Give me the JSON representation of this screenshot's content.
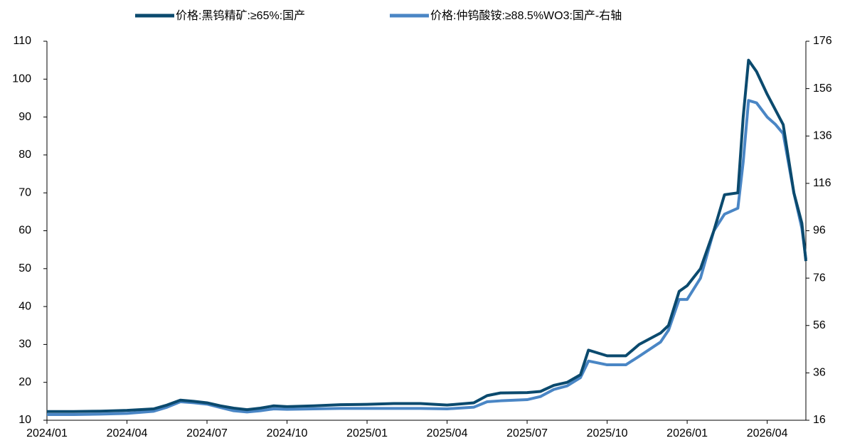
{
  "chart_data": {
    "type": "line",
    "x": [
      0,
      1,
      2,
      3,
      4,
      4.5,
      5,
      5.5,
      6,
      6.5,
      7,
      7.5,
      8,
      8.5,
      9,
      10,
      11,
      12,
      13,
      14,
      15,
      16,
      16.5,
      17,
      18,
      18.5,
      19,
      19.5,
      20,
      20.3,
      21,
      21.7,
      22.2,
      23,
      23.3,
      23.7,
      24,
      24.5,
      25,
      25.4,
      25.9,
      26.1,
      26.3,
      26.6,
      27,
      27.3,
      27.6,
      28,
      28.3,
      28.45
    ],
    "series": [
      {
        "name": "价格:黑钨精矿:≥65%:国产",
        "color": "#0b4a6e",
        "values": [
          12.3,
          12.3,
          12.4,
          12.6,
          13,
          14,
          15.3,
          15,
          14.6,
          13.8,
          13.2,
          12.8,
          13.2,
          13.8,
          13.6,
          13.8,
          14.1,
          14.2,
          14.4,
          14.4,
          14,
          14.6,
          16.5,
          17.2,
          17.3,
          17.6,
          19.2,
          20,
          22,
          28.5,
          27,
          27,
          30,
          33,
          35,
          44,
          45.5,
          50,
          60,
          69.5,
          70,
          90,
          105,
          102,
          96,
          92,
          88,
          70,
          62,
          52
        ]
      },
      {
        "name": "价格:仲钨酸铵:≥88.5%WO3:国产-右轴",
        "color": "#4a86c5",
        "axis": "y2",
        "values": [
          18.4,
          18.4,
          18.6,
          18.9,
          19.8,
          21.5,
          23.8,
          23.4,
          22.8,
          21.4,
          20,
          19.5,
          20,
          20.8,
          20.6,
          20.8,
          21,
          21,
          21,
          21,
          20.8,
          21.5,
          23.8,
          24.2,
          24.7,
          26,
          29,
          30.5,
          34,
          41,
          39.4,
          39.4,
          43,
          49,
          54,
          67,
          67,
          76,
          96,
          103,
          105.5,
          125,
          151,
          150,
          144,
          141,
          137,
          112,
          97,
          84
        ]
      }
    ],
    "xlim": [
      0,
      28.45
    ],
    "xticks": [
      {
        "value": 0,
        "label": "2024/01"
      },
      {
        "value": 3,
        "label": "2024/04"
      },
      {
        "value": 6,
        "label": "2024/07"
      },
      {
        "value": 9,
        "label": "2024/10"
      },
      {
        "value": 12,
        "label": "2025/01"
      },
      {
        "value": 15,
        "label": "2025/04"
      },
      {
        "value": 18,
        "label": "2025/07"
      },
      {
        "value": 21,
        "label": "2025/10"
      },
      {
        "value": 24,
        "label": "2026/01"
      },
      {
        "value": 27,
        "label": "2026/04"
      }
    ],
    "ylim": [
      10,
      110
    ],
    "yticks": [
      10,
      20,
      30,
      40,
      50,
      60,
      70,
      80,
      90,
      100,
      110
    ],
    "y2lim": [
      16,
      176
    ],
    "y2ticks": [
      16,
      36,
      56,
      76,
      96,
      116,
      136,
      156,
      176
    ],
    "legend": "top"
  }
}
